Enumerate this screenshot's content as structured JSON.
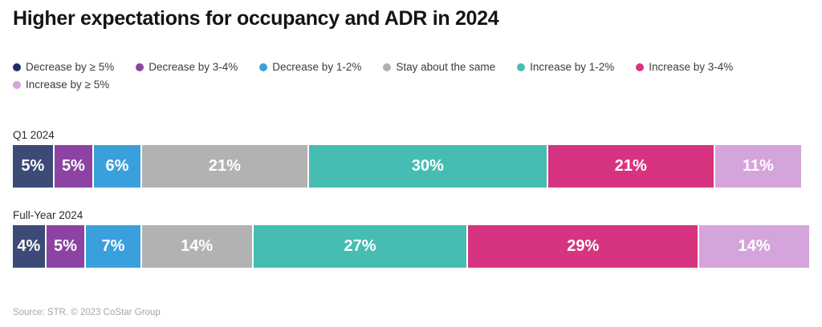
{
  "title": "Higher expectations for occupancy and ADR in 2024",
  "source": "Source: STR. © 2023 CoStar Group",
  "legend": {
    "items": [
      {
        "label": "Decrease by ≥ 5%",
        "color": "#1f2e5c"
      },
      {
        "label": "Decrease by 3-4%",
        "color": "#8d43a3"
      },
      {
        "label": "Decrease by 1-2%",
        "color": "#3aa0dc"
      },
      {
        "label": "Stay about the same",
        "color": "#b2b2b2"
      },
      {
        "label": "Increase by 1-2%",
        "color": "#45bdb2"
      },
      {
        "label": "Increase by 3-4%",
        "color": "#d63480"
      },
      {
        "label": "Increase by ≥ 5%",
        "color": "#d5a4da"
      }
    ]
  },
  "chart_data": {
    "type": "bar",
    "orientation": "horizontal-stacked",
    "unit": "%",
    "title": "Higher expectations for occupancy and ADR in 2024",
    "categories": [
      "Decrease by ≥ 5%",
      "Decrease by 3-4%",
      "Decrease by 1-2%",
      "Stay about the same",
      "Increase by 1-2%",
      "Increase by 3-4%",
      "Increase by ≥ 5%"
    ],
    "segment_colors": [
      "#3d4a78",
      "#8d43a3",
      "#3aa0dc",
      "#b2b2b2",
      "#45bdb2",
      "#d63480",
      "#d5a4da"
    ],
    "series": [
      {
        "name": "Q1 2024",
        "values": [
          5,
          5,
          6,
          21,
          30,
          21,
          11
        ]
      },
      {
        "name": "Full-Year 2024",
        "values": [
          4,
          5,
          7,
          14,
          27,
          29,
          14
        ]
      }
    ],
    "xlim": [
      0,
      100
    ],
    "data_labels": "inside-white",
    "legend_position": "top",
    "grid": false
  }
}
